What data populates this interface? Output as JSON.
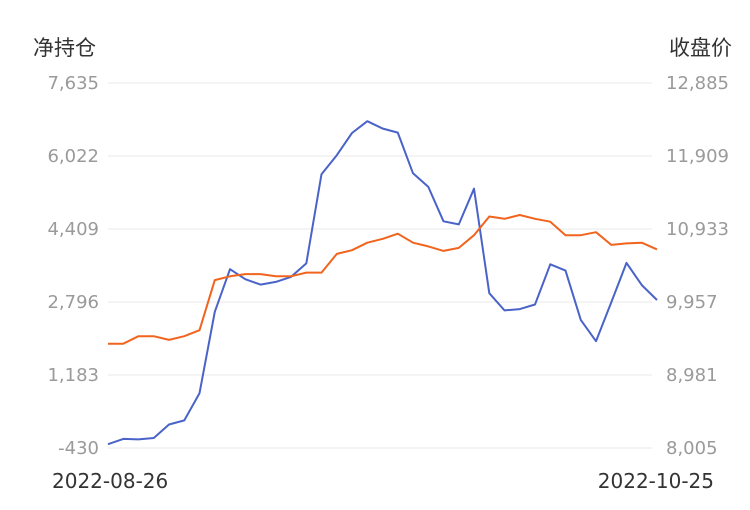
{
  "chart_data": {
    "type": "line",
    "left_axis_title": "净持仓",
    "right_axis_title": "收盘价",
    "left_ticks": [
      "7,635",
      "6,022",
      "4,409",
      "2,796",
      "1,183",
      "-430"
    ],
    "right_ticks": [
      "12,885",
      "11,909",
      "10,933",
      "9,957",
      "8,981",
      "8,005"
    ],
    "left_ylim": [
      -430,
      7635
    ],
    "right_ylim": [
      8005,
      12885
    ],
    "x_start_label": "2022-08-26",
    "x_end_label": "2022-10-25",
    "grid": true,
    "series": [
      {
        "axis": "left",
        "color": "#4a63c8",
        "values": [
          -345,
          -230,
          -240,
          -210,
          90,
          180,
          780,
          2580,
          3520,
          3300,
          3180,
          3240,
          3350,
          3650,
          5620,
          6040,
          6530,
          6790,
          6630,
          6540,
          5640,
          5340,
          4580,
          4510,
          5300,
          2990,
          2610,
          2640,
          2740,
          3630,
          3490,
          2400,
          1930,
          2790,
          3660,
          3170,
          2840
        ]
      },
      {
        "axis": "right",
        "color": "#f0641e",
        "values": [
          9400,
          9400,
          9500,
          9500,
          9450,
          9500,
          9580,
          10250,
          10300,
          10330,
          10330,
          10300,
          10300,
          10350,
          10350,
          10600,
          10650,
          10750,
          10800,
          10870,
          10750,
          10700,
          10640,
          10680,
          10850,
          11100,
          11070,
          11120,
          11070,
          11030,
          10850,
          10850,
          10890,
          10720,
          10740,
          10750,
          10660
        ]
      }
    ]
  }
}
